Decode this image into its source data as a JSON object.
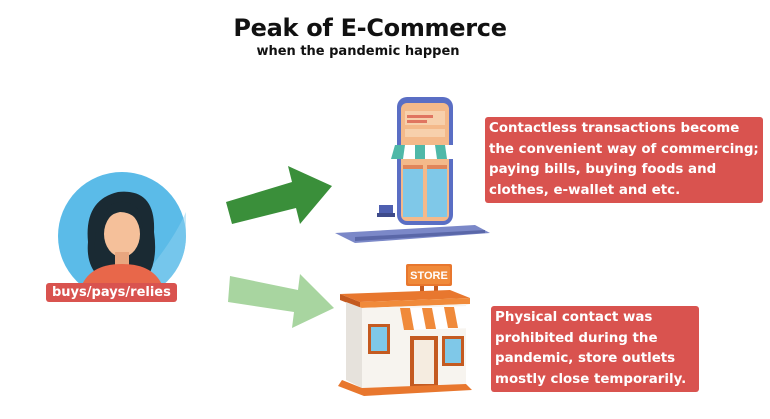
{
  "header": {
    "title": "Peak of E-Commerce",
    "subtitle": "when the pandemic happen"
  },
  "person": {
    "label": "buys/pays/relies"
  },
  "online": {
    "text_lines": [
      "Contactless transactions become",
      "the convenient way of commercing;",
      "paying bills, buying foods and",
      "clothes, e-wallet and etc."
    ]
  },
  "offline": {
    "store_sign": "STORE",
    "text_lines": [
      "Physical contact was",
      "prohibited during the",
      "pandemic, store outlets",
      "mostly close temporarily."
    ]
  },
  "colors": {
    "label_red": "#d9534f",
    "arrow_dark_green": "#3a8f3a",
    "arrow_light_green": "#a8d5a0",
    "avatar_bg": "#5bbbe8",
    "store_orange": "#e8772e"
  },
  "icons": [
    "person-avatar-icon",
    "phone-shop-icon",
    "store-building-icon",
    "arrow-right-icon"
  ]
}
